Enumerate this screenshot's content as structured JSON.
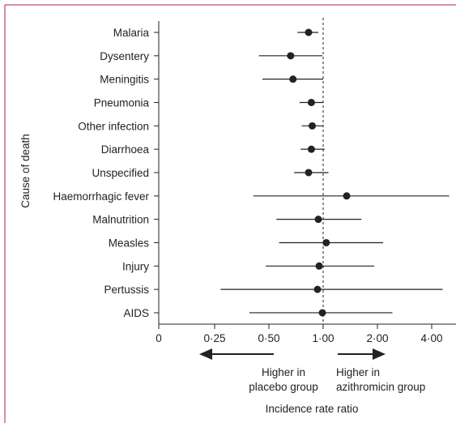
{
  "colors": {
    "frame": "#b5175c",
    "ink": "#222222",
    "ref_line": "#222222"
  },
  "chart_data": {
    "type": "forest",
    "ylabel": "Cause of death",
    "xlabel": "Incidence rate ratio",
    "scale": "log2",
    "xticks": [
      {
        "value": 0.25,
        "label": "0·25"
      },
      {
        "value": 0.5,
        "label": "0·50"
      },
      {
        "value": 1,
        "label": "1·00"
      },
      {
        "value": 2,
        "label": "2·00"
      },
      {
        "value": 4,
        "label": "4·00"
      }
    ],
    "zero_tick_label": "0",
    "xlim": [
      0.25,
      5.0
    ],
    "reference_line": 1,
    "annotation_left": [
      "Higher in",
      "placebo group"
    ],
    "annotation_right": [
      "Higher in",
      "azithromicin group"
    ],
    "categories": [
      "Malaria",
      "Dysentery",
      "Meningitis",
      "Pneumonia",
      "Other infection",
      "Diarrhoea",
      "Unspecified",
      "Haemorrhagic fever",
      "Malnutrition",
      "Measles",
      "Injury",
      "Pertussis",
      "AIDS"
    ],
    "series": [
      {
        "estimate": [
          0.83,
          0.66,
          0.68,
          0.86,
          0.87,
          0.86,
          0.83,
          1.35,
          0.94,
          1.04,
          0.95,
          0.93,
          0.99
        ],
        "lower": [
          0.72,
          0.44,
          0.46,
          0.74,
          0.76,
          0.75,
          0.69,
          0.41,
          0.55,
          0.57,
          0.48,
          0.27,
          0.39
        ],
        "upper": [
          0.94,
          0.99,
          1.0,
          1.0,
          1.0,
          1.02,
          1.07,
          5.0,
          1.63,
          2.15,
          1.92,
          4.6,
          2.42
        ]
      }
    ]
  }
}
